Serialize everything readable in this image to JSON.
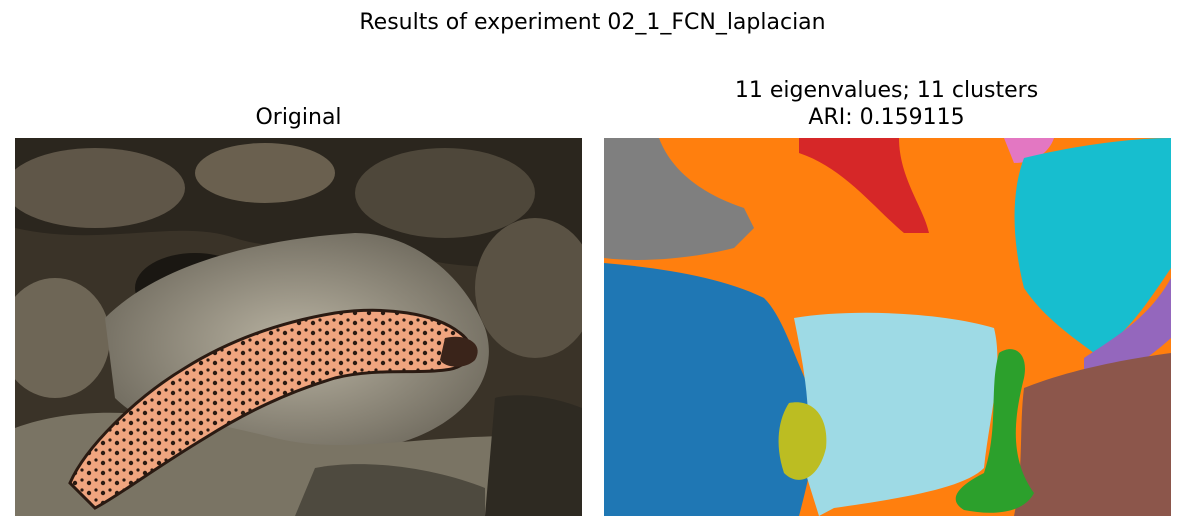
{
  "figure": {
    "suptitle": "Results of experiment 02_1_FCN_laplacian"
  },
  "left_panel": {
    "title": "Original",
    "image": "photo-of-gila-monster-lizard-on-rocks"
  },
  "right_panel": {
    "title_line1": "11 eigenvalues; 11 clusters",
    "title_line2": "ARI: 0.159115",
    "image": "segmentation-map-11-clusters"
  },
  "cluster_colors": [
    "#1f77b4",
    "#ff7f0e",
    "#2ca02c",
    "#d62728",
    "#9467bd",
    "#8c564b",
    "#e377c2",
    "#7f7f7f",
    "#bcbd22",
    "#17becf",
    "#9edae5"
  ]
}
